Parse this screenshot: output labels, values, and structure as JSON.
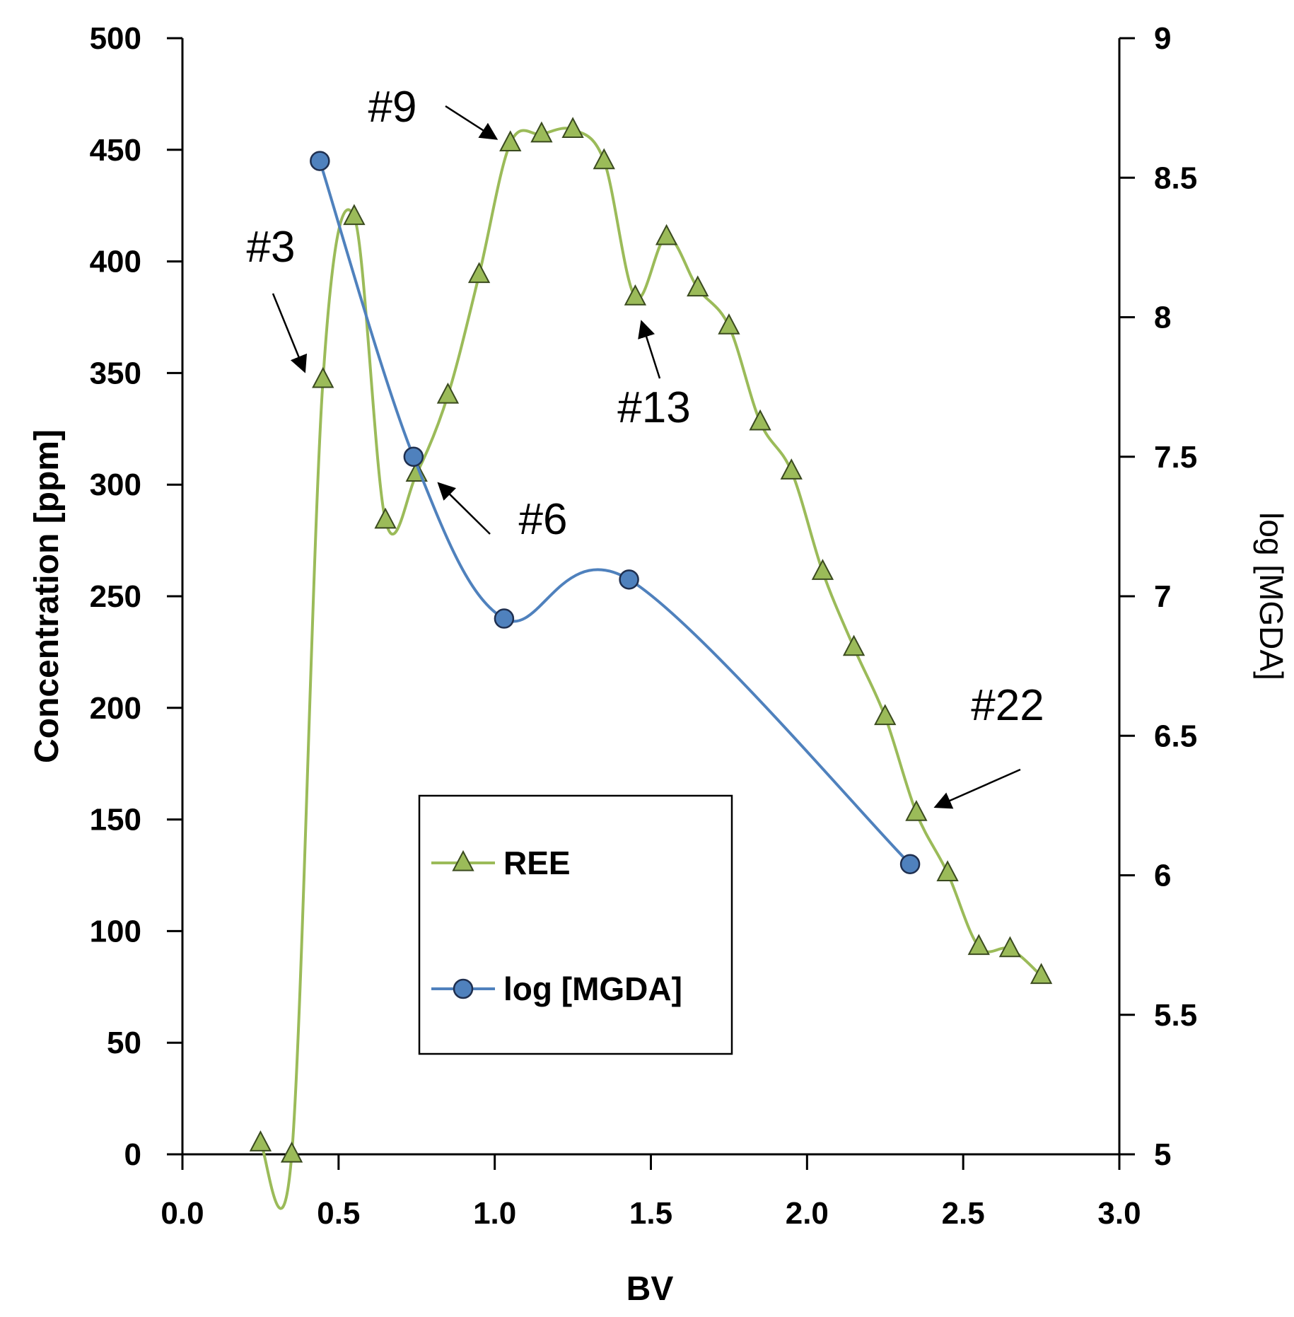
{
  "chart_data": {
    "type": "line",
    "title": "",
    "xlabel": "BV",
    "ylabel": "Concentration  [ppm]",
    "y2label": "log [MGDA]",
    "xlim": [
      0,
      3
    ],
    "ylim": [
      0,
      500
    ],
    "y2lim": [
      5,
      9
    ],
    "x_ticks": [
      "0.0",
      "0.5",
      "1.0",
      "1.5",
      "2.0",
      "2.5",
      "3.0"
    ],
    "y_ticks": [
      "0",
      "50",
      "100",
      "150",
      "200",
      "250",
      "300",
      "350",
      "400",
      "450",
      "500"
    ],
    "y2_ticks": [
      "5",
      "5.5",
      "6",
      "6.5",
      "7",
      "7.5",
      "8",
      "8.5",
      "9"
    ],
    "grid": false,
    "legend_position": "center-left",
    "series": [
      {
        "name": "REE",
        "axis": "left",
        "color": "#9bbb59",
        "marker": "triangle",
        "x": [
          0.25,
          0.35,
          0.45,
          0.55,
          0.65,
          0.75,
          0.85,
          0.95,
          1.05,
          1.15,
          1.25,
          1.35,
          1.45,
          1.55,
          1.65,
          1.75,
          1.85,
          1.95,
          2.05,
          2.15,
          2.25,
          2.35,
          2.45,
          2.55,
          2.65,
          2.75
        ],
        "values": [
          5,
          0,
          347,
          420,
          284,
          305,
          340,
          394,
          453,
          457,
          459,
          445,
          384,
          411,
          388,
          371,
          328,
          306,
          261,
          227,
          196,
          153,
          126,
          93,
          92,
          80
        ]
      },
      {
        "name": "log [MGDA]",
        "axis": "right",
        "color": "#4f81bd",
        "marker": "circle",
        "x": [
          0.44,
          0.74,
          1.03,
          1.43,
          2.33
        ],
        "values": [
          8.56,
          7.5,
          6.92,
          7.06,
          6.04
        ]
      }
    ],
    "annotations": [
      {
        "text": "#3",
        "x": 0.4,
        "y": 347
      },
      {
        "text": "#6",
        "x": 0.75,
        "y": 305
      },
      {
        "text": "#9",
        "x": 1.04,
        "y": 453
      },
      {
        "text": "#13",
        "x": 1.45,
        "y": 384
      },
      {
        "text": "#22",
        "x": 2.35,
        "y": 153
      }
    ]
  }
}
